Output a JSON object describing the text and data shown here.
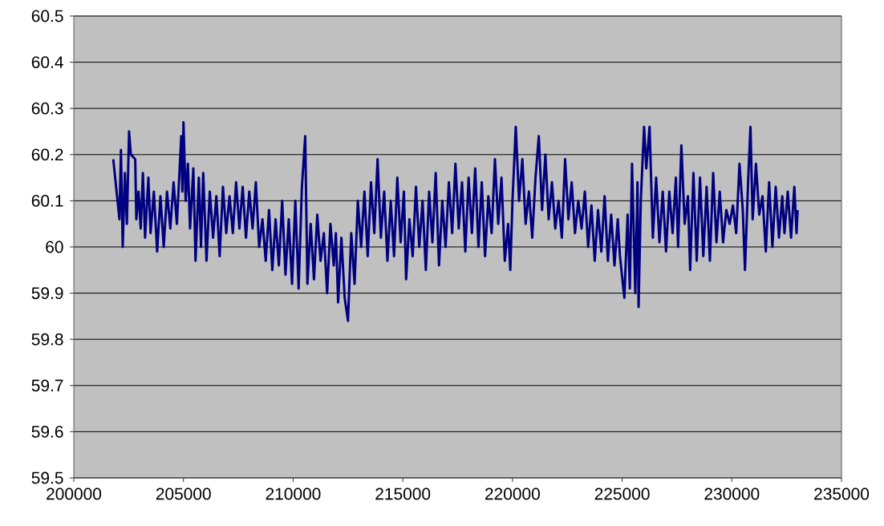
{
  "chart_data": {
    "type": "line",
    "x": [
      201800,
      202080,
      202150,
      202230,
      202330,
      202420,
      202520,
      202600,
      202800,
      202850,
      202950,
      203050,
      203150,
      203250,
      203400,
      203500,
      203650,
      203800,
      203950,
      204100,
      204250,
      204400,
      204550,
      204700,
      204900,
      204950,
      205000,
      205100,
      205200,
      205300,
      205450,
      205550,
      205700,
      205800,
      205900,
      206050,
      206200,
      206350,
      206500,
      206650,
      206800,
      206950,
      207100,
      207250,
      207400,
      207550,
      207700,
      207850,
      208000,
      208150,
      208300,
      208450,
      208600,
      208750,
      208900,
      209050,
      209200,
      209350,
      209500,
      209650,
      209800,
      209950,
      210100,
      210250,
      210400,
      210550,
      210650,
      210800,
      210950,
      211100,
      211250,
      211400,
      211550,
      211700,
      211850,
      211950,
      212050,
      212200,
      212350,
      212500,
      212650,
      212800,
      212950,
      213100,
      213250,
      213400,
      213550,
      213700,
      213850,
      214000,
      214150,
      214300,
      214450,
      214600,
      214750,
      214900,
      215050,
      215150,
      215300,
      215450,
      215600,
      215750,
      215900,
      216050,
      216200,
      216350,
      216500,
      216650,
      216800,
      216950,
      217100,
      217250,
      217400,
      217550,
      217700,
      217850,
      218000,
      218150,
      218300,
      218450,
      218600,
      218750,
      218900,
      219050,
      219200,
      219350,
      219500,
      219650,
      219800,
      219900,
      220000,
      220150,
      220300,
      220450,
      220600,
      220750,
      220900,
      221050,
      221200,
      221350,
      221500,
      221650,
      221800,
      221950,
      222100,
      222250,
      222400,
      222550,
      222700,
      222850,
      223000,
      223150,
      223300,
      223450,
      223600,
      223750,
      223900,
      224050,
      224200,
      224350,
      224500,
      224650,
      224800,
      224900,
      225100,
      225250,
      225350,
      225450,
      225600,
      225700,
      225750,
      225850,
      226000,
      226100,
      226250,
      226400,
      226550,
      226700,
      226850,
      227000,
      227150,
      227300,
      227450,
      227550,
      227700,
      227850,
      228000,
      228100,
      228250,
      228400,
      228550,
      228700,
      228850,
      229000,
      229150,
      229300,
      229450,
      229600,
      229750,
      229900,
      230050,
      230200,
      230350,
      230500,
      230600,
      230750,
      230850,
      230950,
      231100,
      231250,
      231400,
      231550,
      231700,
      231850,
      232000,
      232150,
      232300,
      232400,
      232550,
      232700,
      232850,
      232950,
      233000
    ],
    "series": [
      {
        "color": "#000080",
        "values": [
          60.19,
          60.06,
          60.21,
          60.0,
          60.16,
          60.05,
          60.25,
          60.2,
          60.19,
          60.06,
          60.12,
          60.04,
          60.16,
          60.02,
          60.15,
          60.03,
          60.12,
          59.99,
          60.11,
          60.0,
          60.12,
          60.04,
          60.14,
          60.05,
          60.24,
          60.12,
          60.27,
          60.1,
          60.18,
          60.04,
          60.17,
          59.97,
          60.15,
          60.0,
          60.16,
          59.97,
          60.12,
          60.02,
          60.11,
          59.98,
          60.13,
          60.03,
          60.11,
          60.03,
          60.14,
          60.04,
          60.13,
          60.02,
          60.12,
          60.04,
          60.14,
          60.0,
          60.06,
          59.97,
          60.08,
          59.95,
          60.06,
          59.96,
          60.1,
          59.94,
          60.06,
          59.92,
          60.1,
          59.91,
          60.13,
          60.24,
          59.92,
          60.05,
          59.93,
          60.07,
          59.97,
          60.03,
          59.9,
          60.05,
          59.96,
          60.03,
          59.88,
          60.02,
          59.89,
          59.84,
          60.03,
          59.92,
          60.1,
          60.0,
          60.12,
          59.98,
          60.14,
          60.03,
          60.19,
          60.02,
          60.12,
          59.97,
          60.1,
          59.98,
          60.15,
          60.01,
          60.12,
          59.93,
          60.06,
          59.98,
          60.13,
          60.0,
          60.1,
          59.95,
          60.12,
          60.01,
          60.16,
          59.96,
          60.1,
          60.0,
          60.14,
          60.03,
          60.18,
          60.04,
          60.14,
          59.99,
          60.15,
          60.03,
          60.17,
          60.0,
          60.14,
          59.98,
          60.11,
          60.03,
          60.19,
          60.05,
          60.15,
          59.97,
          60.05,
          59.95,
          60.1,
          60.26,
          60.1,
          60.19,
          60.05,
          60.12,
          60.02,
          60.15,
          60.24,
          60.08,
          60.2,
          60.06,
          60.14,
          60.04,
          60.1,
          60.02,
          60.19,
          60.06,
          60.14,
          60.03,
          60.1,
          60.04,
          60.12,
          60.0,
          60.09,
          59.97,
          60.08,
          59.99,
          60.11,
          59.97,
          60.07,
          59.96,
          60.06,
          59.98,
          59.89,
          60.07,
          59.91,
          60.18,
          59.9,
          60.14,
          59.87,
          60.1,
          60.26,
          60.17,
          60.26,
          60.02,
          60.15,
          60.01,
          60.12,
          59.99,
          60.12,
          60.03,
          60.15,
          60.0,
          60.22,
          60.05,
          60.11,
          59.95,
          60.16,
          59.97,
          60.15,
          59.98,
          60.13,
          59.97,
          60.16,
          60.01,
          60.12,
          60.01,
          60.08,
          60.05,
          60.09,
          60.03,
          60.18,
          60.08,
          59.95,
          60.15,
          60.26,
          60.06,
          60.18,
          60.07,
          60.11,
          59.99,
          60.14,
          60.0,
          60.13,
          60.02,
          60.11,
          60.03,
          60.12,
          60.02,
          60.13,
          60.03,
          60.08
        ]
      }
    ],
    "xlim": [
      200000,
      235000
    ],
    "ylim": [
      59.5,
      60.5
    ],
    "xticks": [
      200000,
      205000,
      210000,
      215000,
      220000,
      225000,
      230000,
      235000
    ],
    "yticks": [
      59.5,
      59.6,
      59.7,
      59.8,
      59.9,
      60,
      60.1,
      60.2,
      60.3,
      60.4,
      60.5
    ],
    "grid": "y",
    "line_style": "solid"
  }
}
